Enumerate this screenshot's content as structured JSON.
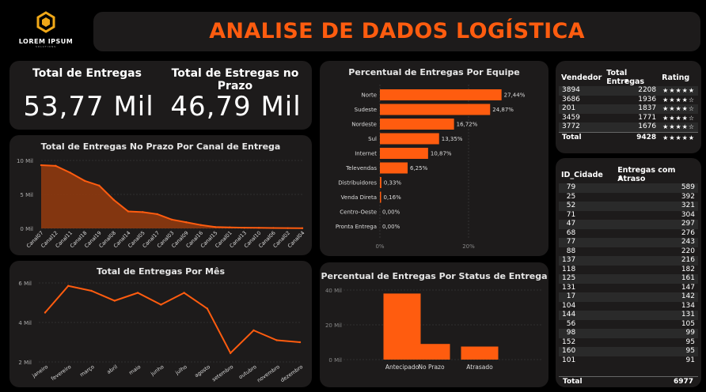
{
  "logo": {
    "name": "LOREM IPSUM",
    "tagline": "SOLUTIONS"
  },
  "header": {
    "title": "ANALISE DE DADOS LOGÍSTICA"
  },
  "kpis": [
    {
      "label": "Total de Entregas",
      "value": "53,77 Mil"
    },
    {
      "label": "Total de Estregas no Prazo",
      "value": "46,79 Mil"
    }
  ],
  "colors": {
    "accent": "#ff5c0f",
    "card": "#1d1b1b",
    "background": "#000000"
  },
  "vendor_table": {
    "headers": [
      "Vendedor",
      "Total Entregas",
      "Rating"
    ],
    "rows": [
      {
        "vendedor": "3894",
        "total": "2208",
        "rating": "★★★★★"
      },
      {
        "vendedor": "3686",
        "total": "1936",
        "rating": "★★★★☆"
      },
      {
        "vendedor": "201",
        "total": "1837",
        "rating": "★★★★☆"
      },
      {
        "vendedor": "3459",
        "total": "1771",
        "rating": "★★★★☆"
      },
      {
        "vendedor": "3772",
        "total": "1676",
        "rating": "★★★★☆"
      }
    ],
    "total_label": "Total",
    "total_value": "9428",
    "total_rating": "★★★★★"
  },
  "city_table": {
    "headers": [
      "ID_Cidade",
      "Entregas com Atraso"
    ],
    "rows": [
      [
        "79",
        "589"
      ],
      [
        "25",
        "392"
      ],
      [
        "52",
        "321"
      ],
      [
        "71",
        "304"
      ],
      [
        "47",
        "297"
      ],
      [
        "68",
        "276"
      ],
      [
        "77",
        "243"
      ],
      [
        "88",
        "220"
      ],
      [
        "137",
        "216"
      ],
      [
        "118",
        "182"
      ],
      [
        "125",
        "161"
      ],
      [
        "131",
        "147"
      ],
      [
        "17",
        "142"
      ],
      [
        "104",
        "134"
      ],
      [
        "144",
        "131"
      ],
      [
        "56",
        "105"
      ],
      [
        "98",
        "99"
      ],
      [
        "152",
        "95"
      ],
      [
        "160",
        "95"
      ],
      [
        "101",
        "91"
      ]
    ],
    "total_label": "Total",
    "total_value": "6977"
  },
  "chart_data": [
    {
      "type": "area",
      "title": "Total de Entregas No Prazo Por Canal de Entrega",
      "categories": [
        "Canal07",
        "Canal12",
        "Canal11",
        "Canal18",
        "Canal19",
        "Canal08",
        "Canal14",
        "Canal05",
        "Canal17",
        "Canal03",
        "Canal09",
        "Canal16",
        "Canal15",
        "Canal01",
        "Canal13",
        "Canal10",
        "Canal06",
        "Canal02",
        "Canal04"
      ],
      "values": [
        9300,
        9200,
        8200,
        7000,
        6300,
        4200,
        2500,
        2400,
        2100,
        1300,
        900,
        500,
        200,
        150,
        100,
        80,
        60,
        40,
        30
      ],
      "yticks": [
        "0 Mil",
        "5 Mil",
        "10 Mil"
      ],
      "ylim": [
        0,
        10000
      ],
      "grid": true
    },
    {
      "type": "line",
      "title": "Total de Entregas Por Mês",
      "categories": [
        "janeiro",
        "fevereiro",
        "março",
        "abril",
        "maio",
        "junho",
        "julho",
        "agosto",
        "setembro",
        "outubro",
        "novembro",
        "dezembro"
      ],
      "values": [
        4500,
        5850,
        5600,
        5100,
        5500,
        4900,
        5500,
        4700,
        2450,
        3600,
        3100,
        3000
      ],
      "yticks": [
        "2 Mil",
        "4 Mil",
        "6 Mil"
      ],
      "ylim": [
        2000,
        6000
      ],
      "grid": true
    },
    {
      "type": "bar",
      "orientation": "horizontal",
      "title": "Percentual de Entregas Por Equipe",
      "categories": [
        "Norte",
        "Sudeste",
        "Nordeste",
        "Sul",
        "Internet",
        "Televendas",
        "Distribuidores",
        "Venda Direta",
        "Centro-Oeste",
        "Pronta Entrega"
      ],
      "values": [
        27.44,
        24.87,
        16.72,
        13.35,
        10.87,
        6.25,
        0.33,
        0.16,
        0.0,
        0.0
      ],
      "labels": [
        "27,44%",
        "24,87%",
        "16,72%",
        "13,35%",
        "10,87%",
        "6,25%",
        "0,33%",
        "0,16%",
        "0,00%",
        "0,00%"
      ],
      "xticks": [
        "0%",
        "20%"
      ],
      "xlim": [
        0,
        30
      ]
    },
    {
      "type": "bar",
      "title": "Percentual de Entregas Por Status de Entrega",
      "categories": [
        "Antecipado",
        "No Prazo",
        "Atrasado"
      ],
      "values": [
        38,
        9,
        7.5
      ],
      "yticks": [
        "0 Mil",
        "20 Mil",
        "40 Mil"
      ],
      "ylim": [
        0,
        40
      ],
      "grid": true
    }
  ]
}
